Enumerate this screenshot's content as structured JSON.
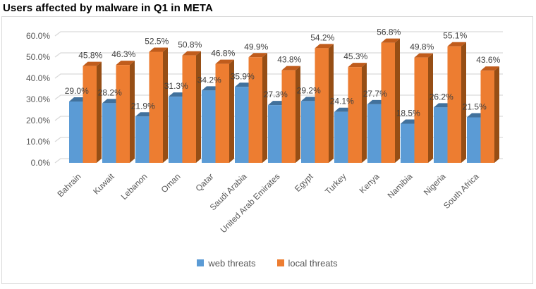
{
  "page": {
    "title": "Users affected by malware in Q1 in META"
  },
  "chart": {
    "frame_border_color": "#D9D9D9",
    "grid_color": "#D9D9D9",
    "axis_text_color": "#595959",
    "data_label_color": "#404040"
  },
  "chart_data": {
    "type": "bar",
    "style": "3d-clustered-column",
    "title": "Users affected by malware in Q1 in META",
    "categories": [
      "Bahrain",
      "Kuwait",
      "Lebanon",
      "Oman",
      "Qatar",
      "Saudi Arabia",
      "United Arab Emirates",
      "Egypt",
      "Turkey",
      "Kenya",
      "Namibia",
      "Nigeria",
      "South Africa"
    ],
    "series": [
      {
        "name": "web threats",
        "color": "#5B9BD5",
        "top_color": "#41719C",
        "side_color": "#39648C",
        "values": [
          29.0,
          28.2,
          21.9,
          31.3,
          34.2,
          35.9,
          27.3,
          29.2,
          24.1,
          27.7,
          18.5,
          26.2,
          21.5
        ]
      },
      {
        "name": "local threats",
        "color": "#ED7D31",
        "top_color": "#C05C1C",
        "side_color": "#964E15",
        "values": [
          45.8,
          46.3,
          52.5,
          50.8,
          46.8,
          49.9,
          43.8,
          54.2,
          45.3,
          56.8,
          49.8,
          55.1,
          43.6
        ]
      }
    ],
    "y_ticks": [
      "0.0%",
      "10.0%",
      "20.0%",
      "30.0%",
      "40.0%",
      "50.0%",
      "60.0%"
    ],
    "ylim": [
      0,
      60
    ],
    "grid": true,
    "legend_position": "bottom",
    "data_label_format": "0.0%"
  }
}
